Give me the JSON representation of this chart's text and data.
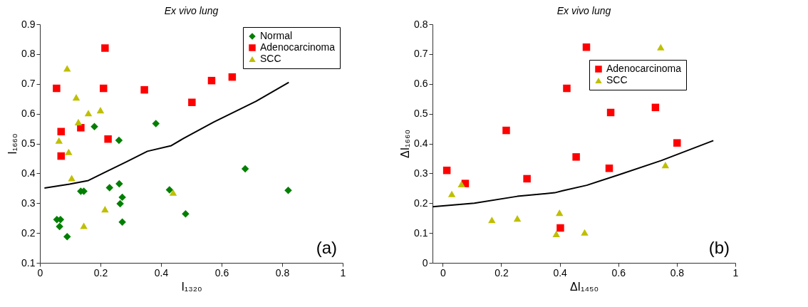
{
  "chart_data": [
    {
      "type": "scatter",
      "title": "Ex vivo lung",
      "xlabel": "I₁₃₂₀",
      "ylabel": "I₁₆₆₀",
      "xlim": [
        0,
        1
      ],
      "ylim": [
        0.1,
        0.9
      ],
      "xticks": [
        0,
        0.2,
        0.4,
        0.6,
        0.8,
        1
      ],
      "yticks": [
        0.1,
        0.2,
        0.3,
        0.4,
        0.5,
        0.6,
        0.7,
        0.8,
        0.9
      ],
      "grid": false,
      "legend": "top right",
      "annotations": [
        "(a)"
      ],
      "series": [
        {
          "name": "Normal",
          "color": "#007f00",
          "marker": "diamond",
          "x": [
            0.056,
            0.068,
            0.065,
            0.09,
            0.135,
            0.145,
            0.18,
            0.23,
            0.261,
            0.262,
            0.265,
            0.272,
            0.272,
            0.383,
            0.428,
            0.481,
            0.678,
            0.82
          ],
          "values": [
            0.245,
            0.245,
            0.222,
            0.188,
            0.34,
            0.34,
            0.557,
            0.352,
            0.511,
            0.365,
            0.298,
            0.32,
            0.237,
            0.567,
            0.345,
            0.264,
            0.415,
            0.343
          ]
        },
        {
          "name": "Adenocarcinoma",
          "color": "#ff0000",
          "marker": "square",
          "x": [
            0.055,
            0.07,
            0.07,
            0.135,
            0.215,
            0.21,
            0.225,
            0.345,
            0.502,
            0.567,
            0.635
          ],
          "values": [
            0.685,
            0.54,
            0.458,
            0.553,
            0.82,
            0.685,
            0.515,
            0.68,
            0.638,
            0.711,
            0.723
          ]
        },
        {
          "name": "SCC",
          "color": "#bfbf00",
          "marker": "triangle",
          "x": [
            0.063,
            0.09,
            0.095,
            0.105,
            0.12,
            0.127,
            0.16,
            0.2,
            0.145,
            0.215,
            0.44
          ],
          "values": [
            0.51,
            0.752,
            0.472,
            0.384,
            0.655,
            0.572,
            0.602,
            0.612,
            0.224,
            0.28,
            0.336
          ]
        },
        {
          "type": "line",
          "color": "#000000",
          "marker": "none",
          "x": [
            0.015,
            0.098,
            0.16,
            0.216,
            0.286,
            0.355,
            0.434,
            0.474,
            0.574,
            0.714,
            0.822
          ],
          "values": [
            0.351,
            0.364,
            0.376,
            0.404,
            0.439,
            0.474,
            0.493,
            0.517,
            0.572,
            0.642,
            0.705
          ]
        }
      ]
    },
    {
      "type": "scatter",
      "title": "Ex vivo lung",
      "xlabel": "ΔI₁₄₅₀",
      "ylabel": "ΔI₁₆₆₀",
      "xlim": [
        -0.035,
        1
      ],
      "ylim": [
        0,
        0.8
      ],
      "xticks": [
        0,
        0.2,
        0.4,
        0.6,
        0.8,
        1
      ],
      "yticks": [
        0,
        0.1,
        0.2,
        0.3,
        0.4,
        0.5,
        0.6,
        0.7,
        0.8
      ],
      "grid": false,
      "legend": "top right",
      "annotations": [
        "(b)"
      ],
      "series": [
        {
          "name": "Adenocarcinoma",
          "color": "#ff0000",
          "marker": "square",
          "x": [
            0.014,
            0.077,
            0.217,
            0.288,
            0.402,
            0.491,
            0.424,
            0.574,
            0.727,
            0.801,
            0.456,
            0.569
          ],
          "values": [
            0.31,
            0.266,
            0.444,
            0.282,
            0.117,
            0.723,
            0.585,
            0.504,
            0.521,
            0.402,
            0.355,
            0.317
          ]
        },
        {
          "name": "SCC",
          "color": "#bfbf00",
          "marker": "triangle",
          "x": [
            0.031,
            0.064,
            0.168,
            0.255,
            0.388,
            0.399,
            0.485,
            0.745,
            0.761
          ],
          "values": [
            0.231,
            0.264,
            0.144,
            0.149,
            0.097,
            0.168,
            0.102,
            0.723,
            0.328
          ]
        },
        {
          "type": "line",
          "color": "#000000",
          "marker": "none",
          "x": [
            -0.035,
            0.108,
            0.255,
            0.383,
            0.41,
            0.492,
            0.601,
            0.747,
            0.925
          ],
          "values": [
            0.188,
            0.2,
            0.223,
            0.235,
            0.242,
            0.26,
            0.295,
            0.343,
            0.41
          ]
        }
      ]
    }
  ]
}
